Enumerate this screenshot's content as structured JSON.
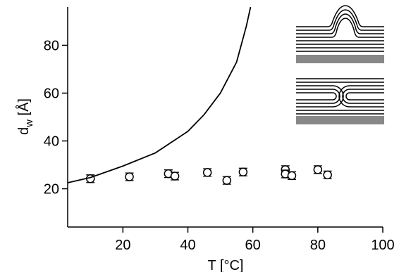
{
  "chart_data": {
    "type": "scatter",
    "xlabel": "T [°C]",
    "ylabel": {
      "main": "d",
      "sub": "w",
      "unit": " [Å]"
    },
    "xlim": [
      3,
      100
    ],
    "xticks": [
      20,
      40,
      60,
      80,
      100
    ],
    "ylim": [
      4,
      96
    ],
    "yticks": [
      20,
      40,
      60,
      80
    ],
    "series": [
      {
        "style": "markers",
        "color": "#000000",
        "x": [
          10,
          22,
          34,
          36,
          46,
          52,
          57,
          70,
          70,
          72,
          80,
          83
        ],
        "values": [
          24.2,
          25,
          26.3,
          25.3,
          26.8,
          23.5,
          27,
          28,
          26.2,
          25.5,
          28,
          25.8
        ],
        "errors": [
          1.6,
          1.6,
          1.6,
          1.6,
          1.6,
          1.6,
          1.6,
          1.6,
          1.6,
          1.6,
          1.6,
          1.6
        ]
      },
      {
        "style": "line",
        "color": "#000000",
        "x": [
          3,
          10,
          20,
          30,
          40,
          45,
          50,
          55,
          58,
          59.3
        ],
        "values": [
          22.5,
          24.7,
          29.5,
          35,
          44,
          51,
          60,
          73,
          88,
          96
        ]
      }
    ]
  }
}
